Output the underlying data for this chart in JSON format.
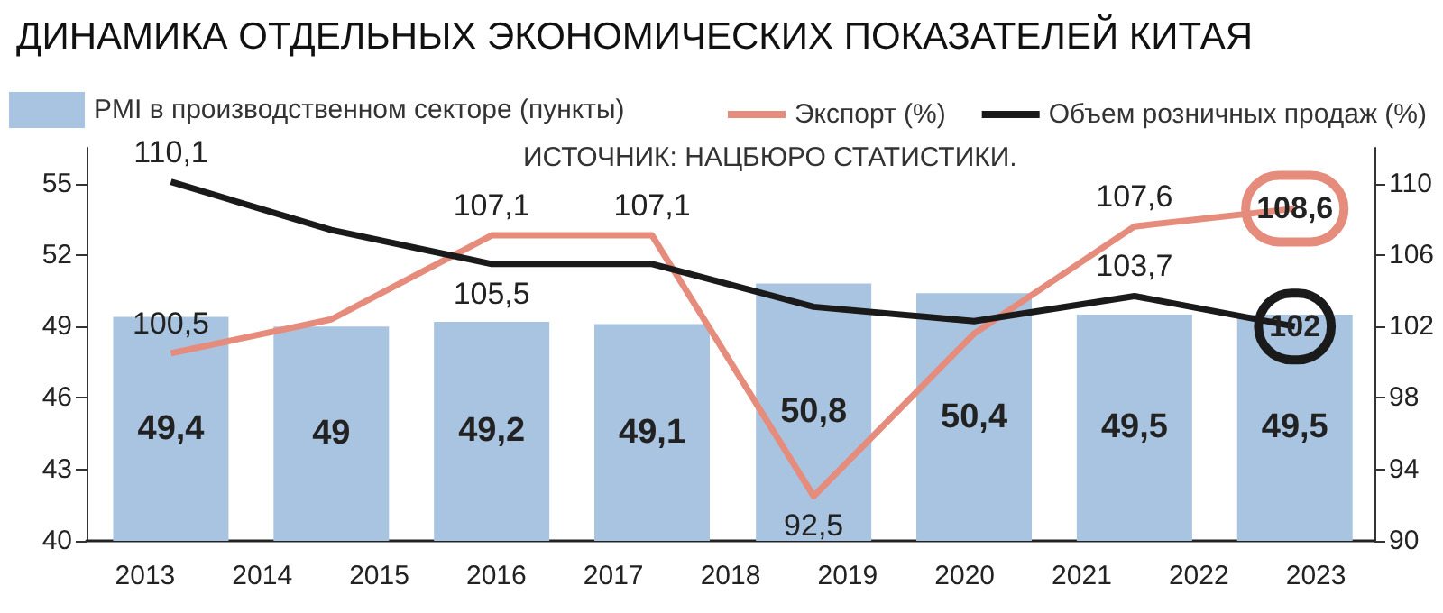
{
  "chart_data": {
    "type": "bar",
    "title": "ДИНАМИКА ОТДЕЛЬНЫХ ЭКОНОМИЧЕСКИХ ПОКАЗАТЕЛЕЙ КИТАЯ",
    "annotations": [
      "ИСТОЧНИК: НАЦБЮРО СТАТИСТИКИ."
    ],
    "xlim": [
      2012.5,
      2023.5
    ],
    "xticks": [
      2013,
      2014,
      2015,
      2016,
      2017,
      2018,
      2019,
      2020,
      2021,
      2022,
      2023
    ],
    "ylim": [
      40,
      56.5
    ],
    "yticks": [
      40,
      43,
      46,
      49,
      52,
      55
    ],
    "y2lim": [
      90,
      112
    ],
    "y2ticks": [
      90,
      94,
      98,
      102,
      106,
      110
    ],
    "legend": "top",
    "series": [
      {
        "name": "PMI в производственном секторе (пункты)",
        "color": "#a9c4e0",
        "x": [
          2013.22,
          2014.59,
          2015.96,
          2017.33,
          2018.71,
          2020.08,
          2021.45,
          2022.82
        ],
        "values": [
          49.4,
          49,
          49.2,
          49.1,
          50.8,
          50.4,
          49.5,
          49.5
        ],
        "value_labels": [
          "49,4",
          "49",
          "49,2",
          "49,1",
          "50,8",
          "50,4",
          "49,5",
          "49,5"
        ]
      },
      {
        "name": "Экспорт (%)",
        "type": "line",
        "axis": "y2",
        "color": "#e58c7c",
        "x": [
          2013.22,
          2014.59,
          2015.96,
          2017.33,
          2018.71,
          2020.08,
          2021.45,
          2022.82
        ],
        "values": [
          100.5,
          102.4,
          107.1,
          107.1,
          92.5,
          101.6,
          107.6,
          108.6
        ],
        "value_labels": [
          "100,5",
          null,
          "107,1",
          "107,1",
          "92,5",
          null,
          "107,6",
          "108,6"
        ]
      },
      {
        "name": "Объем розничных продаж (%)",
        "type": "line",
        "axis": "y2",
        "color": "#1a1a1a",
        "x": [
          2013.22,
          2014.59,
          2015.96,
          2017.33,
          2018.71,
          2020.08,
          2021.45,
          2022.82
        ],
        "values": [
          110.1,
          107.4,
          105.5,
          105.5,
          103.1,
          102.3,
          103.7,
          102
        ],
        "value_labels": [
          "110,1",
          null,
          "105,5",
          null,
          null,
          null,
          "103,7",
          "102"
        ]
      }
    ]
  }
}
